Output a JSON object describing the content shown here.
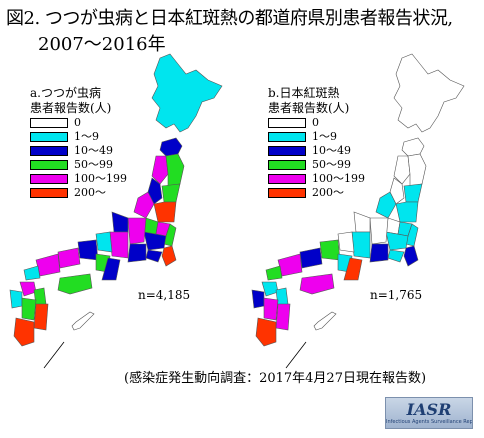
{
  "title": {
    "line1": "図2. つつが虫病と日本紅斑熱の都道府県別患者報告状況,",
    "line2": "2007～2016年"
  },
  "legend_colors": {
    "c0": "#ffffff",
    "c1": "#00e5ee",
    "c2": "#0000c8",
    "c3": "#22dd22",
    "c4": "#ee00ee",
    "c5": "#ff3300"
  },
  "maps": [
    {
      "legend_title_line1": "a.つつが虫病",
      "legend_title_line2": "患者報告数(人)",
      "n_label": "n=4,185"
    },
    {
      "legend_title_line1": "b.日本紅斑熱",
      "legend_title_line2": "患者報告数(人)",
      "n_label": "n=1,765"
    }
  ],
  "legend_items": [
    "0",
    "1～9",
    "10～49",
    "50～99",
    "100～199",
    "200～"
  ],
  "source": "(感染症発生動向調査：2017年4月27日現在報告数)",
  "badge": {
    "logo": "IASR",
    "subtitle": "Infectious Agents Surveillance Report"
  }
}
